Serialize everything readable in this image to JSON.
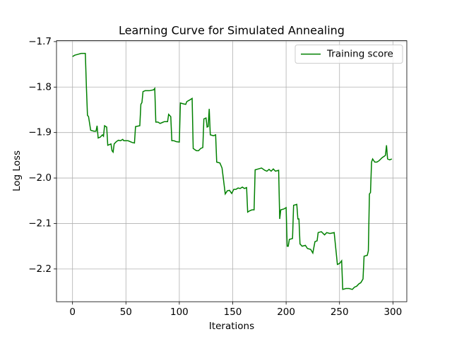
{
  "chart_data": {
    "type": "line",
    "title": "Learning Curve for Simulated Annealing",
    "x_label": "Iterations",
    "y_label": "Log Loss",
    "xlim": [
      -15,
      313
    ],
    "ylim": [
      -2.272,
      -1.698
    ],
    "xticks": [
      0,
      50,
      100,
      150,
      200,
      250,
      300
    ],
    "yticks": [
      {
        "value": -2.2,
        "label": "−2.2"
      },
      {
        "value": -2.1,
        "label": "−2.1"
      },
      {
        "value": -2.0,
        "label": "−2.0"
      },
      {
        "value": -1.9,
        "label": "−1.9"
      },
      {
        "value": -1.8,
        "label": "−1.8"
      },
      {
        "value": -1.7,
        "label": "−1.7"
      }
    ],
    "grid": true,
    "legend": "upper right",
    "x": [
      0,
      2,
      5,
      8,
      12,
      13,
      14,
      15,
      17,
      20,
      22,
      23,
      24,
      26,
      28,
      29,
      30,
      32,
      33,
      36,
      37,
      38,
      39,
      41,
      43,
      45,
      47,
      48,
      52,
      56,
      58,
      59,
      63,
      64,
      65,
      66,
      68,
      72,
      76,
      77,
      78,
      80,
      82,
      84,
      86,
      89,
      90,
      92,
      93,
      95,
      97,
      100,
      101,
      104,
      106,
      107,
      110,
      112,
      113,
      116,
      118,
      120,
      122,
      123,
      125,
      126,
      127,
      128,
      129,
      132,
      134,
      135,
      138,
      140,
      143,
      145,
      147,
      149,
      151,
      153,
      155,
      157,
      159,
      161,
      163,
      164,
      166,
      168,
      170,
      171,
      174,
      177,
      180,
      182,
      184,
      186,
      188,
      190,
      193,
      194,
      195,
      198,
      200,
      201,
      202,
      203,
      206,
      207,
      210,
      211,
      212,
      213,
      215,
      218,
      220,
      223,
      225,
      227,
      229,
      230,
      233,
      236,
      238,
      241,
      245,
      248,
      250,
      252,
      253,
      256,
      259,
      262,
      264,
      266,
      268,
      270,
      272,
      273,
      276,
      277,
      278,
      279,
      280,
      281,
      283,
      285,
      287,
      290,
      292,
      293,
      294,
      295,
      297,
      299
    ],
    "series": [
      {
        "name": "Training score",
        "color": "#008000",
        "values": [
          -1.733,
          -1.73,
          -1.728,
          -1.726,
          -1.726,
          -1.8,
          -1.862,
          -1.865,
          -1.895,
          -1.897,
          -1.897,
          -1.885,
          -1.912,
          -1.91,
          -1.905,
          -1.908,
          -1.885,
          -1.888,
          -1.928,
          -1.925,
          -1.94,
          -1.943,
          -1.925,
          -1.92,
          -1.917,
          -1.918,
          -1.915,
          -1.918,
          -1.918,
          -1.922,
          -1.923,
          -1.887,
          -1.885,
          -1.838,
          -1.834,
          -1.81,
          -1.808,
          -1.808,
          -1.806,
          -1.803,
          -1.877,
          -1.877,
          -1.88,
          -1.878,
          -1.876,
          -1.876,
          -1.86,
          -1.865,
          -1.918,
          -1.918,
          -1.92,
          -1.921,
          -1.835,
          -1.837,
          -1.838,
          -1.832,
          -1.828,
          -1.825,
          -1.935,
          -1.94,
          -1.94,
          -1.935,
          -1.933,
          -1.87,
          -1.868,
          -1.888,
          -1.887,
          -1.848,
          -1.905,
          -1.907,
          -1.905,
          -1.965,
          -1.967,
          -1.978,
          -2.035,
          -2.028,
          -2.027,
          -2.034,
          -2.025,
          -2.025,
          -2.022,
          -2.023,
          -2.02,
          -2.023,
          -2.021,
          -2.075,
          -2.072,
          -2.07,
          -2.07,
          -1.982,
          -1.98,
          -1.978,
          -1.983,
          -1.985,
          -1.981,
          -1.985,
          -1.98,
          -1.985,
          -1.983,
          -2.09,
          -2.07,
          -2.068,
          -2.065,
          -2.15,
          -2.15,
          -2.135,
          -2.133,
          -2.06,
          -2.058,
          -2.09,
          -2.09,
          -2.145,
          -2.15,
          -2.148,
          -2.155,
          -2.157,
          -2.165,
          -2.14,
          -2.138,
          -2.12,
          -2.118,
          -2.125,
          -2.12,
          -2.122,
          -2.12,
          -2.19,
          -2.188,
          -2.182,
          -2.245,
          -2.243,
          -2.243,
          -2.245,
          -2.24,
          -2.238,
          -2.233,
          -2.23,
          -2.222,
          -2.172,
          -2.17,
          -2.16,
          -2.035,
          -2.032,
          -1.965,
          -1.958,
          -1.965,
          -1.965,
          -1.962,
          -1.955,
          -1.952,
          -1.95,
          -1.928,
          -1.958,
          -1.96,
          -1.958
        ]
      }
    ]
  }
}
